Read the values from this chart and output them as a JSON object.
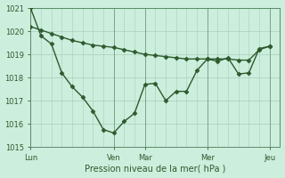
{
  "xlabel": "Pression niveau de la mer( hPa )",
  "ylim": [
    1015,
    1021
  ],
  "yticks": [
    1015,
    1016,
    1017,
    1018,
    1019,
    1020,
    1021
  ],
  "xtick_labels": [
    "Lun",
    "Ven",
    "Mar",
    "Mer",
    "Jeu"
  ],
  "xtick_positions": [
    0,
    8,
    11,
    17,
    23
  ],
  "xlim": [
    0,
    24
  ],
  "line_color": "#2d5a2d",
  "bg_color": "#cceedd",
  "grid_color": "#aaccbb",
  "line1_x": [
    0,
    1,
    2,
    3,
    4,
    5,
    6,
    7,
    8,
    9,
    10,
    11,
    12,
    13,
    14,
    15,
    16,
    17,
    18,
    19,
    20,
    21,
    22,
    23
  ],
  "line1_y": [
    1021.0,
    1019.8,
    1019.45,
    1018.2,
    1017.6,
    1017.15,
    1016.55,
    1015.75,
    1015.6,
    1016.1,
    1016.45,
    1017.7,
    1017.75,
    1017.0,
    1017.4,
    1017.4,
    1018.3,
    1018.8,
    1018.7,
    1018.85,
    1018.15,
    1018.2,
    1019.25,
    1019.35
  ],
  "line2_x": [
    0,
    1,
    2,
    3,
    4,
    5,
    6,
    7,
    8,
    9,
    10,
    11,
    12,
    13,
    14,
    15,
    16,
    17,
    18,
    19,
    20,
    21,
    22,
    23
  ],
  "line2_y": [
    1020.2,
    1020.05,
    1019.9,
    1019.75,
    1019.6,
    1019.5,
    1019.4,
    1019.35,
    1019.3,
    1019.2,
    1019.1,
    1019.0,
    1018.95,
    1018.9,
    1018.85,
    1018.8,
    1018.8,
    1018.8,
    1018.8,
    1018.8,
    1018.75,
    1018.75,
    1019.2,
    1019.35
  ],
  "marker": "D",
  "markersize": 2.5,
  "linewidth": 1.0,
  "tick_fontsize": 6,
  "xlabel_fontsize": 7
}
